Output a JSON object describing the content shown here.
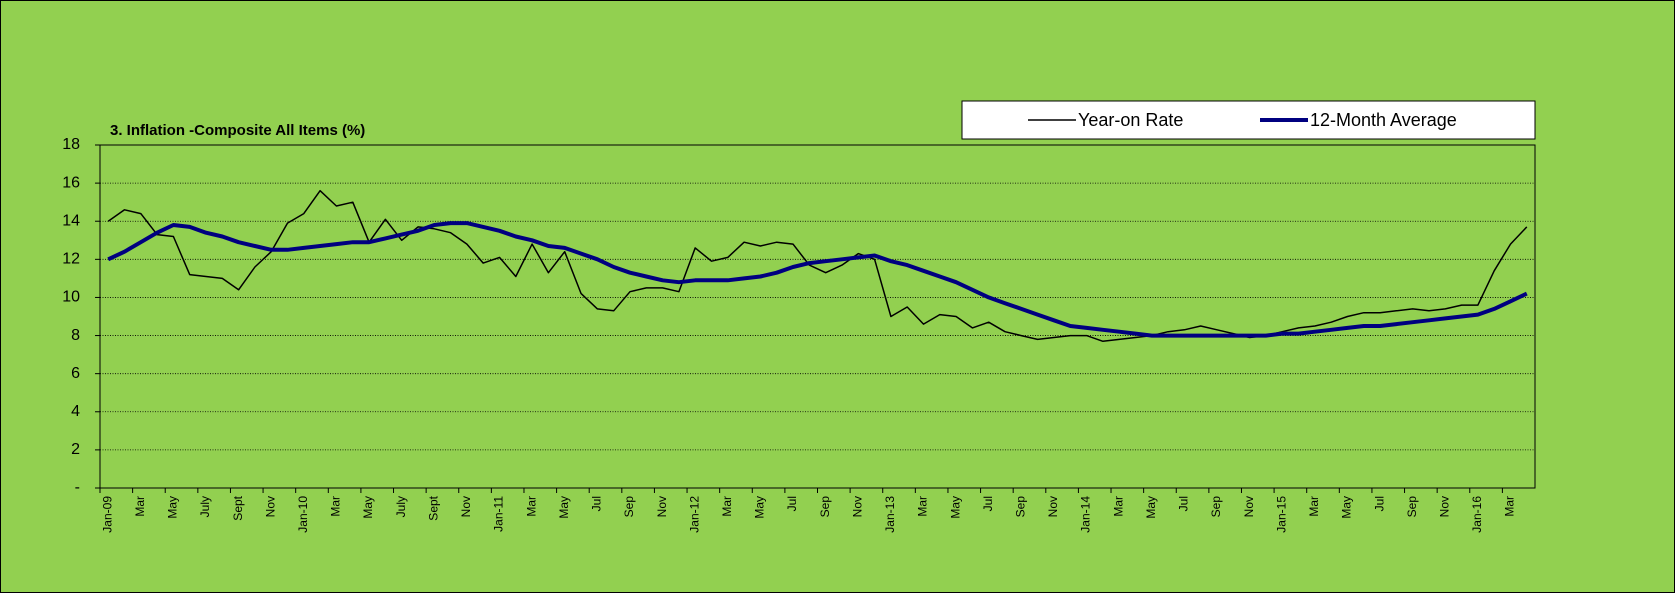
{
  "chart_data": {
    "type": "line",
    "title": "3. Inflation -Composite All Items (%)",
    "categories": [
      "Jan-09",
      null,
      "Mar",
      null,
      "May",
      null,
      "July",
      null,
      "Sept",
      null,
      "Nov",
      null,
      "Jan-10",
      null,
      "Mar",
      null,
      "May",
      null,
      "July",
      null,
      "Sept",
      null,
      "Nov",
      null,
      "Jan-11",
      null,
      "Mar",
      null,
      "May",
      null,
      "Jul",
      null,
      "Sep",
      null,
      "Nov",
      null,
      "Jan-12",
      null,
      "Mar",
      null,
      "May",
      null,
      "Jul",
      null,
      "Sep",
      null,
      "Nov",
      null,
      "Jan-13",
      null,
      "Mar",
      null,
      "May",
      null,
      "Jul",
      null,
      "Sep",
      null,
      "Nov",
      null,
      "Jan-14",
      null,
      "Mar",
      null,
      "May",
      null,
      "Jul",
      null,
      "Sep",
      null,
      "Nov",
      null,
      "Jan-15",
      null,
      "Mar",
      null,
      "May",
      null,
      "Jul",
      null,
      "Sep",
      null,
      "Nov",
      null,
      "Jan-16",
      null,
      "Mar",
      null
    ],
    "series": [
      {
        "name": "Year-on Rate",
        "color": "#000000",
        "width": 1.5,
        "values": [
          14.0,
          14.6,
          14.4,
          13.3,
          13.2,
          11.2,
          11.1,
          11.0,
          10.4,
          11.6,
          12.4,
          13.9,
          14.4,
          15.6,
          14.8,
          15.0,
          12.9,
          14.1,
          13.0,
          13.7,
          13.6,
          13.4,
          12.8,
          11.8,
          12.1,
          11.1,
          12.8,
          11.3,
          12.4,
          10.2,
          9.4,
          9.3,
          10.3,
          10.5,
          10.5,
          10.3,
          12.6,
          11.9,
          12.1,
          12.9,
          12.7,
          12.9,
          12.8,
          11.7,
          11.3,
          11.7,
          12.3,
          12.0,
          9.0,
          9.5,
          8.6,
          9.1,
          9.0,
          8.4,
          8.7,
          8.2,
          8.0,
          7.8,
          7.9,
          8.0,
          8.0,
          7.7,
          7.8,
          7.9,
          8.0,
          8.2,
          8.3,
          8.5,
          8.3,
          8.1,
          7.9,
          8.0,
          8.2,
          8.4,
          8.5,
          8.7,
          9.0,
          9.2,
          9.2,
          9.3,
          9.4,
          9.3,
          9.4,
          9.6,
          9.6,
          11.4,
          12.8,
          13.7
        ]
      },
      {
        "name": "12-Month Average",
        "color": "#000080",
        "width": 4,
        "values": [
          12.0,
          12.4,
          12.9,
          13.4,
          13.8,
          13.7,
          13.4,
          13.2,
          12.9,
          12.7,
          12.5,
          12.5,
          12.6,
          12.7,
          12.8,
          12.9,
          12.9,
          13.1,
          13.3,
          13.5,
          13.8,
          13.9,
          13.9,
          13.7,
          13.5,
          13.2,
          13.0,
          12.7,
          12.6,
          12.3,
          12.0,
          11.6,
          11.3,
          11.1,
          10.9,
          10.8,
          10.9,
          10.9,
          10.9,
          11.0,
          11.1,
          11.3,
          11.6,
          11.8,
          11.9,
          12.0,
          12.1,
          12.2,
          11.9,
          11.7,
          11.4,
          11.1,
          10.8,
          10.4,
          10.0,
          9.7,
          9.4,
          9.1,
          8.8,
          8.5,
          8.4,
          8.3,
          8.2,
          8.1,
          8.0,
          8.0,
          8.0,
          8.0,
          8.0,
          8.0,
          8.0,
          8.0,
          8.1,
          8.1,
          8.2,
          8.3,
          8.4,
          8.5,
          8.5,
          8.6,
          8.7,
          8.8,
          8.9,
          9.0,
          9.1,
          9.4,
          9.8,
          10.2
        ]
      }
    ],
    "ylim": [
      0,
      18
    ],
    "yticks": [
      {
        "value": 0,
        "label": "-"
      },
      2,
      4,
      6,
      8,
      10,
      12,
      14,
      16,
      18
    ],
    "grid": true,
    "legend": "top-right",
    "background": "#92d050"
  }
}
